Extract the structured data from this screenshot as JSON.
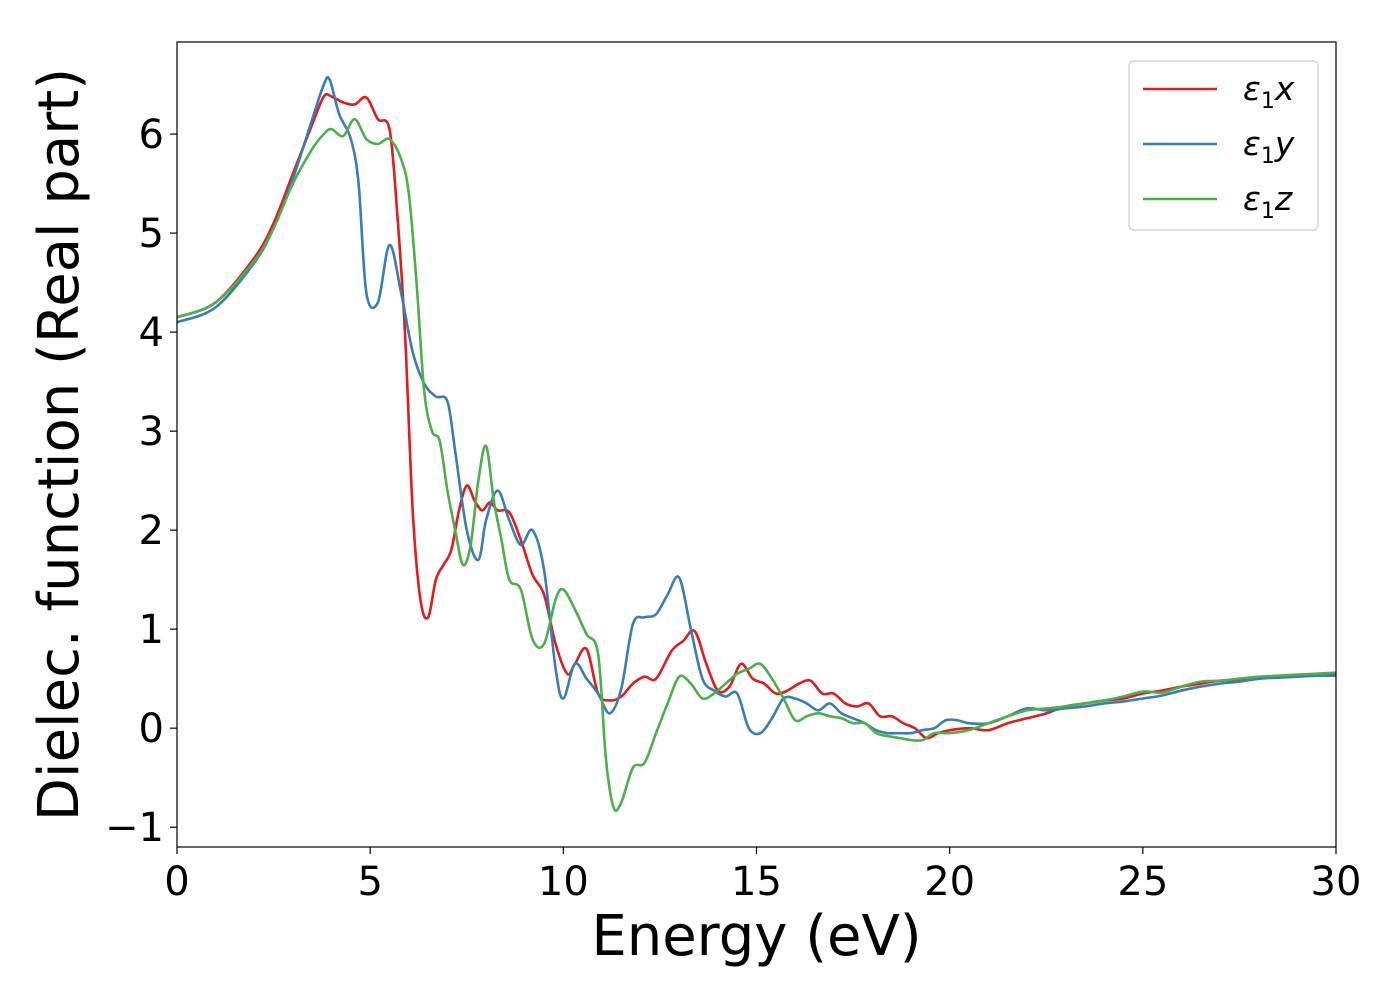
{
  "chart_data": {
    "type": "line",
    "title": "",
    "xlabel": "Energy (eV)",
    "ylabel": "Dielec. function (Real part)",
    "xlim": [
      0,
      30
    ],
    "ylim": [
      -1.2,
      6.93
    ],
    "xticks": [
      0,
      5,
      10,
      15,
      20,
      25,
      30
    ],
    "xtick_labels": [
      "0",
      "5",
      "10",
      "15",
      "20",
      "25",
      "30"
    ],
    "yticks": [
      -1,
      0,
      1,
      2,
      3,
      4,
      5,
      6
    ],
    "ytick_labels": [
      "−1",
      "0",
      "1",
      "2",
      "3",
      "4",
      "5",
      "6"
    ],
    "grid": false,
    "legend_position": "top-right",
    "series": [
      {
        "name": "ε₁x",
        "name_base": "ε",
        "name_sub": "1",
        "name_suffix": "x",
        "color": "#e41a1c",
        "x": [
          0,
          1,
          2,
          2.5,
          3,
          3.5,
          3.8,
          4.0,
          4.3,
          4.6,
          4.9,
          5.2,
          5.5,
          5.7,
          5.9,
          6.1,
          6.3,
          6.5,
          6.7,
          6.9,
          7.1,
          7.3,
          7.5,
          7.7,
          7.9,
          8.1,
          8.3,
          8.6,
          8.9,
          9.2,
          9.5,
          9.8,
          10.1,
          10.3,
          10.6,
          10.9,
          11.2,
          11.5,
          11.8,
          12.1,
          12.4,
          12.8,
          13.1,
          13.4,
          13.7,
          14.0,
          14.3,
          14.6,
          14.9,
          15.2,
          15.5,
          15.8,
          16.1,
          16.4,
          16.7,
          17.0,
          17.3,
          17.6,
          17.9,
          18.2,
          18.5,
          18.8,
          19.1,
          19.4,
          19.7,
          20.0,
          20.5,
          21.0,
          21.5,
          22.0,
          22.5,
          23.0,
          23.5,
          24.0,
          24.5,
          25.0,
          25.5,
          26.0,
          26.5,
          27.0,
          27.5,
          28.0,
          28.5,
          29.0,
          29.5,
          30.0
        ],
        "values": [
          4.15,
          4.3,
          4.75,
          5.1,
          5.6,
          6.1,
          6.38,
          6.38,
          6.32,
          6.3,
          6.37,
          6.15,
          6.05,
          5.2,
          4.0,
          2.2,
          1.3,
          1.12,
          1.5,
          1.65,
          1.8,
          2.2,
          2.45,
          2.3,
          2.2,
          2.28,
          2.2,
          2.18,
          1.9,
          1.55,
          1.35,
          0.85,
          0.55,
          0.65,
          0.8,
          0.35,
          0.28,
          0.32,
          0.45,
          0.52,
          0.5,
          0.78,
          0.88,
          0.98,
          0.65,
          0.38,
          0.42,
          0.65,
          0.5,
          0.45,
          0.35,
          0.38,
          0.45,
          0.48,
          0.35,
          0.35,
          0.25,
          0.22,
          0.25,
          0.12,
          0.12,
          0.05,
          0.0,
          -0.1,
          -0.05,
          -0.02,
          0.0,
          -0.02,
          0.05,
          0.1,
          0.15,
          0.22,
          0.25,
          0.28,
          0.3,
          0.35,
          0.38,
          0.42,
          0.45,
          0.48,
          0.48,
          0.5,
          0.52,
          0.53,
          0.53,
          0.54
        ]
      },
      {
        "name": "ε₁y",
        "name_base": "ε",
        "name_sub": "1",
        "name_suffix": "y",
        "color": "#377eb8",
        "x": [
          0,
          1,
          2,
          2.5,
          3,
          3.5,
          3.8,
          3.95,
          4.2,
          4.5,
          4.7,
          4.9,
          5.2,
          5.5,
          5.8,
          6.1,
          6.4,
          6.7,
          7.0,
          7.2,
          7.5,
          7.8,
          8.0,
          8.3,
          8.6,
          8.9,
          9.2,
          9.5,
          9.8,
          10.0,
          10.3,
          10.6,
          10.9,
          11.2,
          11.5,
          11.8,
          12.1,
          12.4,
          12.7,
          13.0,
          13.3,
          13.6,
          13.9,
          14.2,
          14.5,
          14.8,
          15.1,
          15.4,
          15.7,
          16.0,
          16.3,
          16.6,
          16.9,
          17.2,
          17.5,
          17.8,
          18.1,
          18.4,
          18.7,
          19.0,
          19.3,
          19.6,
          19.9,
          20.2,
          20.5,
          21.0,
          21.5,
          22.0,
          22.5,
          23.0,
          23.5,
          24.0,
          24.5,
          25.0,
          25.5,
          26.0,
          26.5,
          27.0,
          27.5,
          28.0,
          28.5,
          29.0,
          29.5,
          30.0
        ],
        "values": [
          4.1,
          4.25,
          4.7,
          5.05,
          5.55,
          6.15,
          6.5,
          6.55,
          6.2,
          5.95,
          5.5,
          4.4,
          4.3,
          4.88,
          4.4,
          3.8,
          3.48,
          3.35,
          3.3,
          2.8,
          2.0,
          1.7,
          2.1,
          2.4,
          2.1,
          1.85,
          2.0,
          1.6,
          0.6,
          0.3,
          0.65,
          0.5,
          0.35,
          0.15,
          0.4,
          1.05,
          1.12,
          1.15,
          1.35,
          1.52,
          1.0,
          0.5,
          0.38,
          0.32,
          0.35,
          0.0,
          -0.05,
          0.1,
          0.3,
          0.3,
          0.25,
          0.18,
          0.25,
          0.15,
          0.1,
          0.05,
          -0.02,
          -0.05,
          -0.05,
          -0.05,
          -0.02,
          0.0,
          0.08,
          0.08,
          0.05,
          0.05,
          0.12,
          0.2,
          0.18,
          0.2,
          0.22,
          0.25,
          0.27,
          0.3,
          0.33,
          0.38,
          0.42,
          0.45,
          0.47,
          0.5,
          0.51,
          0.52,
          0.53,
          0.53
        ]
      },
      {
        "name": "ε₁z",
        "name_base": "ε",
        "name_sub": "1",
        "name_suffix": "z",
        "color": "#4daf4a",
        "x": [
          0,
          1,
          2,
          2.5,
          3,
          3.5,
          3.8,
          4.0,
          4.3,
          4.6,
          4.9,
          5.2,
          5.5,
          5.8,
          6.0,
          6.2,
          6.4,
          6.6,
          6.8,
          7.0,
          7.2,
          7.4,
          7.6,
          7.8,
          8.0,
          8.2,
          8.4,
          8.6,
          8.9,
          9.2,
          9.5,
          9.8,
          10.0,
          10.3,
          10.6,
          10.9,
          11.1,
          11.3,
          11.5,
          11.8,
          12.1,
          12.4,
          12.7,
          13.0,
          13.3,
          13.6,
          13.9,
          14.2,
          14.5,
          14.8,
          15.1,
          15.4,
          15.7,
          16.0,
          16.3,
          16.6,
          16.9,
          17.2,
          17.5,
          17.8,
          18.1,
          18.4,
          18.7,
          19.0,
          19.3,
          19.6,
          20.0,
          20.5,
          21.0,
          21.5,
          22.0,
          22.5,
          23.0,
          23.5,
          24.0,
          24.5,
          25.0,
          25.5,
          26.0,
          26.5,
          27.0,
          27.5,
          28.0,
          28.5,
          29.0,
          29.5,
          30.0
        ],
        "values": [
          4.15,
          4.3,
          4.72,
          5.05,
          5.5,
          5.85,
          6.0,
          6.05,
          5.98,
          6.15,
          5.95,
          5.9,
          5.95,
          5.75,
          5.4,
          4.5,
          3.4,
          3.0,
          2.9,
          2.4,
          2.0,
          1.65,
          1.85,
          2.5,
          2.85,
          2.3,
          1.9,
          1.5,
          1.4,
          0.9,
          0.85,
          1.3,
          1.4,
          1.2,
          0.95,
          0.75,
          -0.3,
          -0.8,
          -0.75,
          -0.4,
          -0.35,
          -0.05,
          0.25,
          0.52,
          0.45,
          0.3,
          0.35,
          0.45,
          0.55,
          0.6,
          0.65,
          0.5,
          0.3,
          0.08,
          0.12,
          0.15,
          0.12,
          0.1,
          0.05,
          0.05,
          -0.05,
          -0.08,
          -0.1,
          -0.12,
          -0.12,
          -0.05,
          -0.05,
          -0.02,
          0.05,
          0.12,
          0.18,
          0.2,
          0.22,
          0.25,
          0.28,
          0.32,
          0.37,
          0.36,
          0.42,
          0.47,
          0.48,
          0.5,
          0.52,
          0.53,
          0.54,
          0.55,
          0.56
        ]
      }
    ]
  }
}
